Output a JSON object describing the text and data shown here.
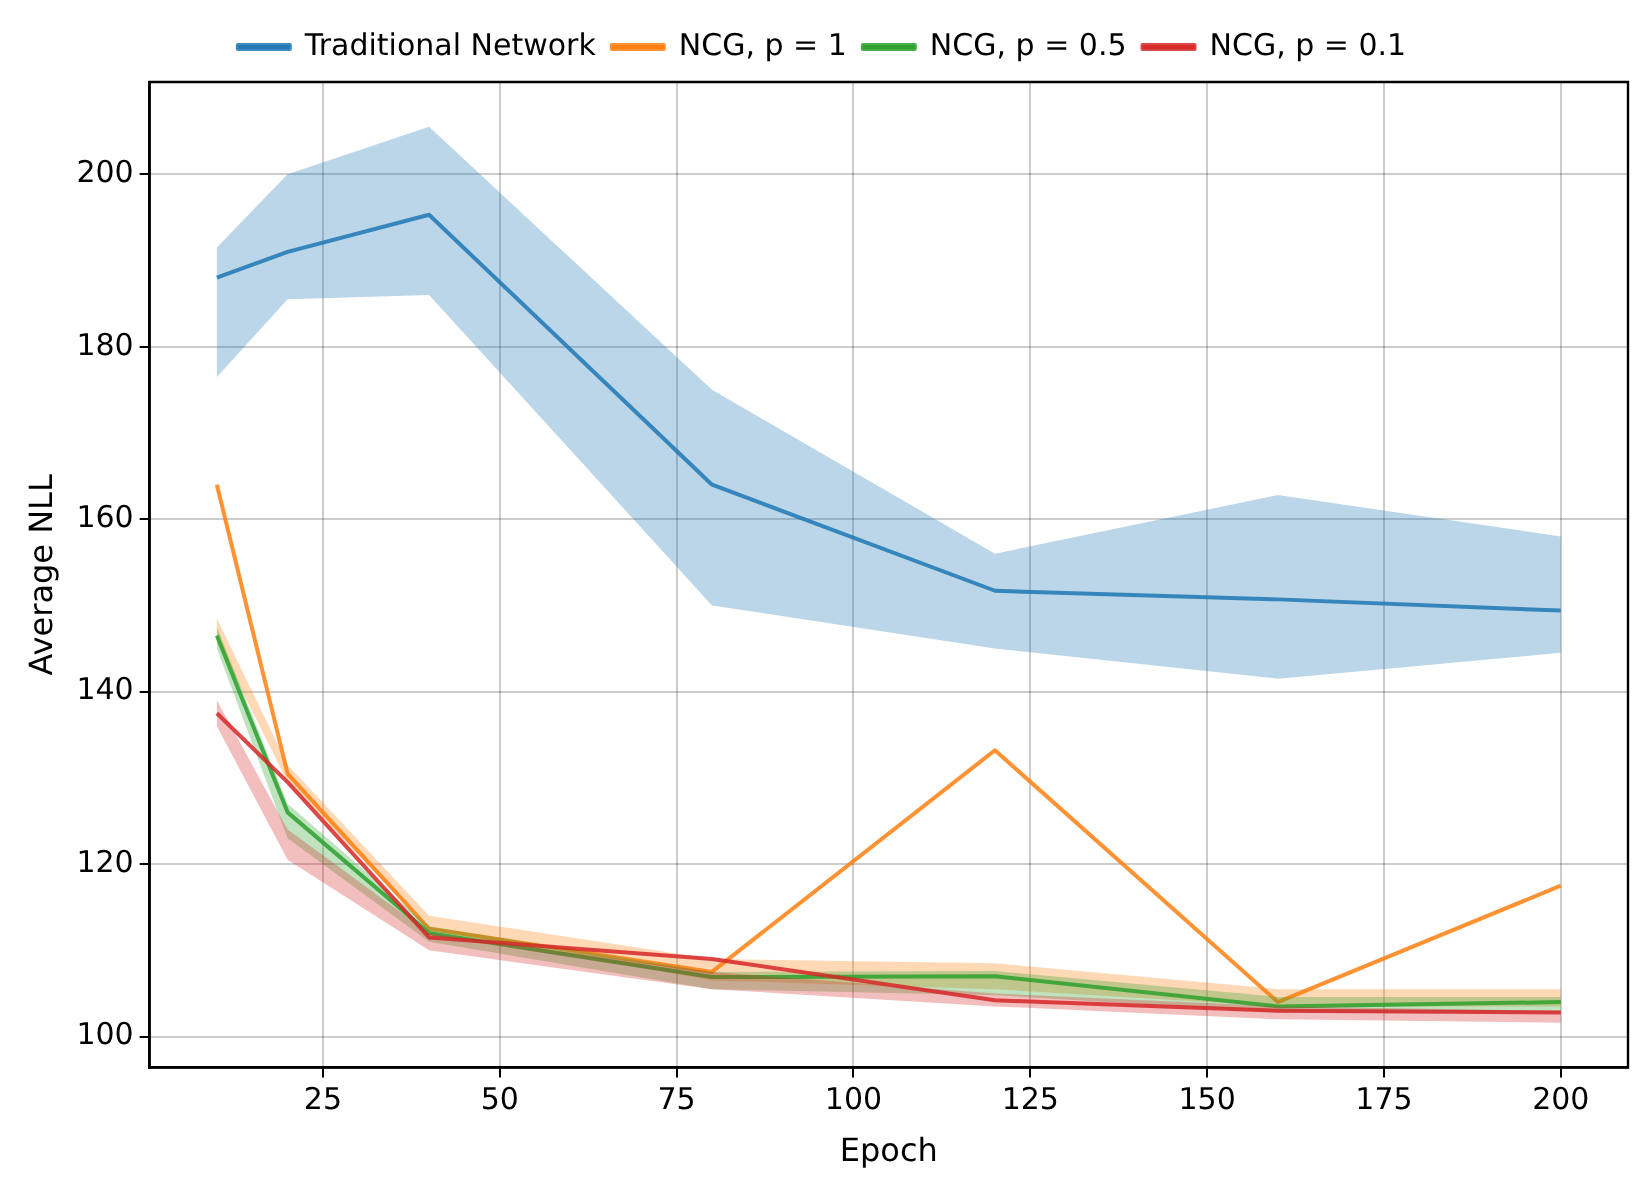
{
  "chart_data": {
    "type": "line",
    "xlabel": "Epoch",
    "ylabel": "Average NLL",
    "x": [
      10,
      20,
      40,
      80,
      120,
      160,
      200
    ],
    "xlim": [
      0.5,
      209.5
    ],
    "xticks": [
      25,
      50,
      75,
      100,
      125,
      150,
      175,
      200
    ],
    "ylim": [
      96.4,
      210.7
    ],
    "yticks": [
      100,
      120,
      140,
      160,
      180,
      200
    ],
    "grid": true,
    "legend": "top",
    "marker": "none",
    "line_style": "solid",
    "series": [
      {
        "name": "Traditional Network",
        "color": "#1f77b4",
        "values": [
          188,
          191,
          195.3,
          164,
          151.7,
          150.7,
          149.4
        ],
        "lower": [
          176.5,
          185.5,
          186,
          150,
          145,
          141.5,
          144.5
        ],
        "upper": [
          191.5,
          200,
          205.5,
          175,
          156,
          162.8,
          158
        ]
      },
      {
        "name": "NCG, p = 1",
        "color": "#ff7f0e",
        "values": [
          164,
          130.5,
          112.5,
          107.5,
          133.2,
          104,
          117.5
        ],
        "lower": [
          146,
          129.5,
          112.5,
          106.5,
          105.5,
          103.5,
          103.5
        ],
        "upper": [
          148.5,
          131.5,
          114,
          109,
          108.5,
          105.5,
          105.5
        ]
      },
      {
        "name": "NCG, p = 0.5",
        "color": "#2ca02c",
        "values": [
          146.5,
          126,
          112,
          106.9,
          107,
          103.5,
          104
        ],
        "lower": [
          145,
          123,
          111,
          105.5,
          104.8,
          102.8,
          102.8
        ],
        "upper": [
          147.5,
          127,
          112.8,
          107.5,
          107.6,
          104.6,
          104.6
        ]
      },
      {
        "name": "NCG, p = 0.1",
        "color": "#d62728",
        "values": [
          137.5,
          129.5,
          111.5,
          109,
          104.2,
          103,
          102.8
        ],
        "lower": [
          136,
          120.5,
          110,
          105.5,
          103.5,
          102,
          101.6
        ],
        "upper": [
          139,
          124,
          112,
          107.5,
          105,
          103.5,
          103
        ]
      }
    ]
  }
}
